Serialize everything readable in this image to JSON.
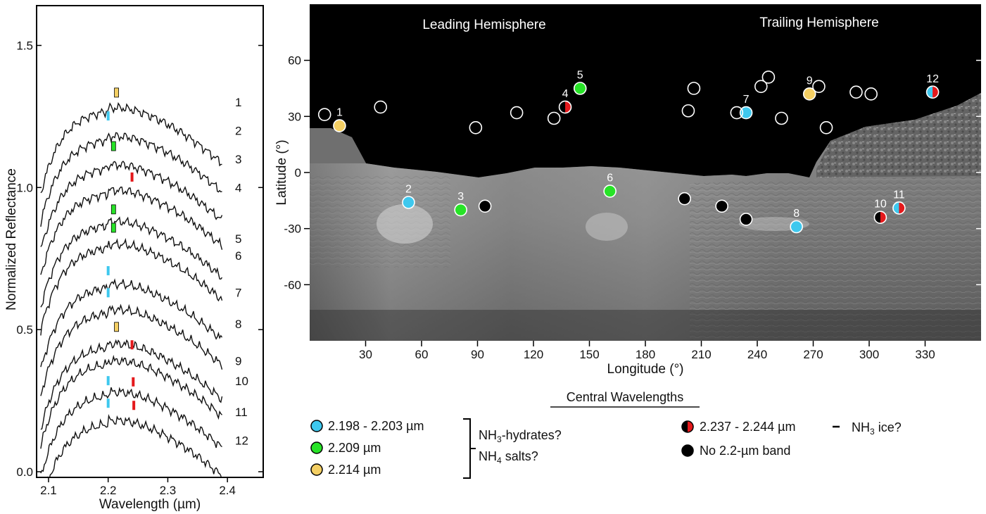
{
  "chart_data": [
    {
      "type": "line",
      "xlabel": "Wavelength (µm)",
      "ylabel": "Normalized Reflectance",
      "xlim": [
        2.08,
        2.46
      ],
      "ylim": [
        -0.02,
        1.64
      ],
      "x_ticks": [
        2.1,
        2.2,
        2.3,
        2.4
      ],
      "y_ticks": [
        0.0,
        0.5,
        1.0,
        1.5
      ],
      "x_tick_labels": [
        "2.1",
        "2.2",
        "2.3",
        "2.4"
      ],
      "y_tick_labels": [
        "0.0",
        "0.5",
        "1.0",
        "1.5"
      ],
      "error_bars": true,
      "series": [
        {
          "label": "1",
          "offset": 1.18,
          "label_y": 1.3,
          "markers": [
            {
              "wavelength": 2.214,
              "color": "yellow"
            }
          ]
        },
        {
          "label": "2",
          "offset": 1.08,
          "label_y": 1.2,
          "markers": [
            {
              "wavelength": 2.2,
              "color": "cyan"
            }
          ]
        },
        {
          "label": "3",
          "offset": 0.98,
          "label_y": 1.1,
          "markers": [
            {
              "wavelength": 2.209,
              "color": "green"
            }
          ]
        },
        {
          "label": "4",
          "offset": 0.89,
          "label_y": 1.0,
          "markers": [
            {
              "wavelength": 2.24,
              "color": "red"
            }
          ]
        },
        {
          "label": "5",
          "offset": 0.78,
          "label_y": 0.82,
          "markers": [
            {
              "wavelength": 2.209,
              "color": "green"
            }
          ]
        },
        {
          "label": "6",
          "offset": 0.7,
          "label_y": 0.76,
          "markers": [
            {
              "wavelength": 2.209,
              "color": "green"
            }
          ]
        },
        {
          "label": "7",
          "offset": 0.56,
          "label_y": 0.63,
          "markers": [
            {
              "wavelength": 2.2,
              "color": "cyan"
            }
          ]
        },
        {
          "label": "8",
          "offset": 0.47,
          "label_y": 0.52,
          "markers": [
            {
              "wavelength": 2.2,
              "color": "cyan"
            }
          ]
        },
        {
          "label": "9",
          "offset": 0.35,
          "label_y": 0.39,
          "markers": [
            {
              "wavelength": 2.214,
              "color": "yellow"
            }
          ]
        },
        {
          "label": "10",
          "offset": 0.29,
          "label_y": 0.32,
          "markers": [
            {
              "wavelength": 2.24,
              "color": "red"
            }
          ]
        },
        {
          "label": "11",
          "offset": 0.18,
          "label_y": 0.21,
          "markers": [
            {
              "wavelength": 2.2,
              "color": "cyan"
            },
            {
              "wavelength": 2.242,
              "color": "red"
            }
          ]
        },
        {
          "label": "12",
          "offset": 0.08,
          "label_y": 0.11,
          "markers": [
            {
              "wavelength": 2.2,
              "color": "cyan"
            },
            {
              "wavelength": 2.243,
              "color": "red"
            }
          ]
        }
      ]
    },
    {
      "type": "scatter",
      "xlabel": "Longitude (°)",
      "ylabel": "Latitude (°)",
      "xlim": [
        0,
        360
      ],
      "ylim": [
        -90,
        90
      ],
      "x_ticks": [
        30,
        60,
        90,
        120,
        150,
        180,
        210,
        240,
        270,
        300,
        330
      ],
      "y_ticks": [
        60,
        30,
        0,
        -30,
        -60
      ],
      "x_tick_labels": [
        "30",
        "60",
        "90",
        "120",
        "150",
        "180",
        "210",
        "240",
        "270",
        "300",
        "330"
      ],
      "y_tick_labels": [
        "60",
        "30",
        "0",
        "-30",
        "-60"
      ],
      "annotations": [
        "Leading Hemisphere",
        "Trailing Hemisphere"
      ],
      "points": [
        {
          "label": "1",
          "lon": 16,
          "lat": 25,
          "category": "yellow"
        },
        {
          "label": "2",
          "lon": 53,
          "lat": -16,
          "category": "cyan"
        },
        {
          "label": "3",
          "lon": 81,
          "lat": -20,
          "category": "green"
        },
        {
          "label": "4",
          "lon": 137,
          "lat": 35,
          "category": "black-red"
        },
        {
          "label": "5",
          "lon": 145,
          "lat": 45,
          "category": "green"
        },
        {
          "label": "6",
          "lon": 161,
          "lat": -10,
          "category": "green"
        },
        {
          "label": "7",
          "lon": 234,
          "lat": 32,
          "category": "cyan"
        },
        {
          "label": "8",
          "lon": 261,
          "lat": -29,
          "category": "cyan"
        },
        {
          "label": "9",
          "lon": 268,
          "lat": 42,
          "category": "yellow"
        },
        {
          "label": "10",
          "lon": 306,
          "lat": -24,
          "category": "black-red"
        },
        {
          "label": "11",
          "lon": 316,
          "lat": -19,
          "category": "cyan-red"
        },
        {
          "label": "12",
          "lon": 334,
          "lat": 43,
          "category": "cyan-red"
        },
        {
          "label": "",
          "lon": 8,
          "lat": 31,
          "category": "none"
        },
        {
          "label": "",
          "lon": 38,
          "lat": 35,
          "category": "none"
        },
        {
          "label": "",
          "lon": 89,
          "lat": 24,
          "category": "none"
        },
        {
          "label": "",
          "lon": 111,
          "lat": 32,
          "category": "none"
        },
        {
          "label": "",
          "lon": 131,
          "lat": 29,
          "category": "none"
        },
        {
          "label": "",
          "lon": 203,
          "lat": 33,
          "category": "none"
        },
        {
          "label": "",
          "lon": 206,
          "lat": 45,
          "category": "none"
        },
        {
          "label": "",
          "lon": 229,
          "lat": 32,
          "category": "none"
        },
        {
          "label": "",
          "lon": 242,
          "lat": 46,
          "category": "none"
        },
        {
          "label": "",
          "lon": 246,
          "lat": 51,
          "category": "none"
        },
        {
          "label": "",
          "lon": 253,
          "lat": 29,
          "category": "none"
        },
        {
          "label": "",
          "lon": 273,
          "lat": 46,
          "category": "none"
        },
        {
          "label": "",
          "lon": 277,
          "lat": 24,
          "category": "none"
        },
        {
          "label": "",
          "lon": 293,
          "lat": 43,
          "category": "none"
        },
        {
          "label": "",
          "lon": 301,
          "lat": 42,
          "category": "none"
        },
        {
          "label": "",
          "lon": 94,
          "lat": -18,
          "category": "black"
        },
        {
          "label": "",
          "lon": 201,
          "lat": -14,
          "category": "black"
        },
        {
          "label": "",
          "lon": 221,
          "lat": -18,
          "category": "black"
        },
        {
          "label": "",
          "lon": 234,
          "lat": -25,
          "category": "black"
        }
      ]
    }
  ],
  "legend": {
    "title": "Central Wavelengths",
    "items": [
      {
        "text": "2.198 - 2.203 µm",
        "color": "#3ec8ee"
      },
      {
        "text": "2.209 µm",
        "color": "#27e327"
      },
      {
        "text": "2.214 µm",
        "color": "#f4cf63"
      },
      {
        "text": "2.237 - 2.244 µm",
        "color": "#e4191c"
      },
      {
        "text": "No 2.2-µm band",
        "color": "#000000"
      }
    ],
    "group_notes": {
      "hydrates": {
        "base": "NH",
        "sub": "3",
        "rest": "-hydrates?"
      },
      "salts": {
        "base": "NH",
        "sub": "4",
        "rest": " salts?"
      },
      "ice": {
        "base": "NH",
        "sub": "3",
        "rest": " ice?"
      }
    }
  },
  "colors": {
    "cyan": "#3ec8ee",
    "green": "#27e327",
    "yellow": "#f4cf63",
    "red": "#e4191c",
    "black": "#000000"
  }
}
